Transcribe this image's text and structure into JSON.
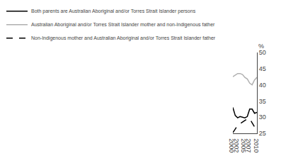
{
  "chart_data": {
    "type": "line",
    "x": [
      2000,
      2001,
      2002,
      2003,
      2004,
      2005,
      2006,
      2007,
      2008,
      2009,
      2010
    ],
    "series": [
      {
        "name": "Both parents are Australian Aboriginal and/or Torres Strait Islander persons",
        "color": "#000000",
        "line_style": "solid",
        "values": [
          33.0,
          30.5,
          29.8,
          30.2,
          30.0,
          29.8,
          30.2,
          32.5,
          32.5,
          31.2,
          31.5
        ]
      },
      {
        "name": "Australian Aboriginal and/or Torres Strait Islander mother and non-Indigenous father",
        "color": "#b0b0b0",
        "line_style": "solid",
        "values": [
          42.5,
          43.0,
          43.5,
          43.5,
          43.2,
          42.3,
          41.8,
          40.5,
          40.0,
          41.5,
          42.3
        ]
      },
      {
        "name": "Non-Indigenous mother and Australian Aboriginal and/or Torres Strait Islander father",
        "color": "#000000",
        "line_style": "dashed",
        "values": [
          25.2,
          26.5,
          27.5,
          28.0,
          28.5,
          29.0,
          29.5,
          29.5,
          28.3,
          27.0,
          27.0
        ]
      }
    ],
    "ylabel": "%",
    "xlim": [
      2000,
      2010
    ],
    "xticks": [
      2000,
      2002,
      2005,
      2007,
      2010
    ],
    "ylim": [
      25,
      50
    ],
    "yticks": [
      25,
      30,
      35,
      40,
      45,
      50
    ],
    "grid": false,
    "legend": "upper left"
  }
}
